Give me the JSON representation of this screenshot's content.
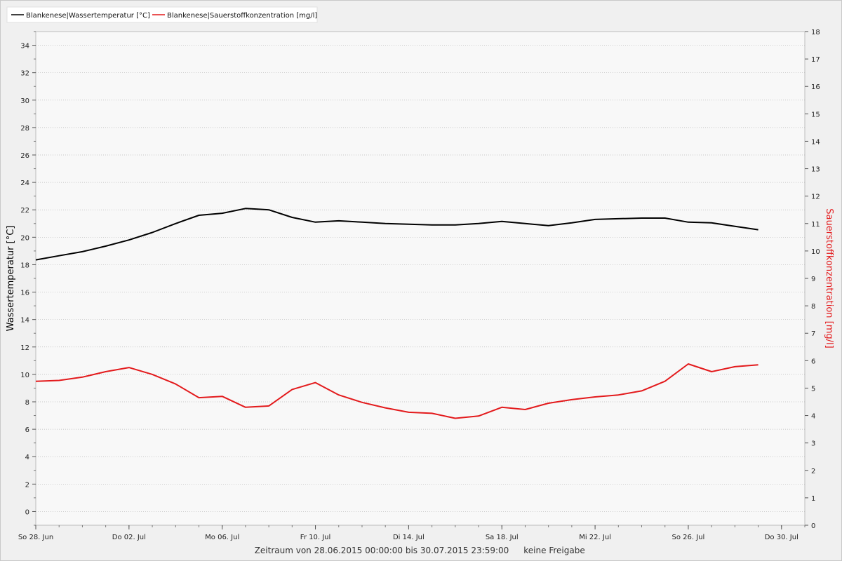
{
  "chart_data": {
    "type": "line",
    "title": "",
    "legend": {
      "placement": "top-left",
      "entries": [
        {
          "label": "Blankenese|Wassertemperatur [°C]",
          "color": "#000000"
        },
        {
          "label": "Blankenese|Sauerstoffkonzentration [mg/l]",
          "color": "#e31a1c"
        }
      ]
    },
    "x_axis": {
      "type": "date",
      "range": [
        "2015-06-28",
        "2015-07-31"
      ],
      "tick_labels": [
        {
          "date": "2015-06-28",
          "label": "So 28. Jun"
        },
        {
          "date": "2015-07-02",
          "label": "Do 02. Jul"
        },
        {
          "date": "2015-07-06",
          "label": "Mo 06. Jul"
        },
        {
          "date": "2015-07-10",
          "label": "Fr 10. Jul"
        },
        {
          "date": "2015-07-14",
          "label": "Di 14. Jul"
        },
        {
          "date": "2015-07-18",
          "label": "Sa 18. Jul"
        },
        {
          "date": "2015-07-22",
          "label": "Mi 22. Jul"
        },
        {
          "date": "2015-07-26",
          "label": "So 26. Jul"
        },
        {
          "date": "2015-07-30",
          "label": "Do 30. Jul"
        }
      ]
    },
    "y_axis_left": {
      "label": "Wassertemperatur [°C]",
      "range": [
        -1,
        35
      ],
      "ticks": [
        0,
        2,
        4,
        6,
        8,
        10,
        12,
        14,
        16,
        18,
        20,
        22,
        24,
        26,
        28,
        30,
        32,
        34
      ],
      "color": "#000000"
    },
    "y_axis_right": {
      "label": "Sauerstoffkonzentration [mg/l]",
      "range": [
        0,
        18
      ],
      "ticks": [
        0,
        1,
        2,
        3,
        4,
        5,
        6,
        7,
        8,
        9,
        10,
        11,
        12,
        13,
        14,
        15,
        16,
        17,
        18
      ],
      "color": "#e31a1c"
    },
    "grid": true,
    "series": [
      {
        "name": "Blankenese|Wassertemperatur [°C]",
        "axis": "left",
        "color": "#000000",
        "x": [
          "2015-06-28",
          "2015-06-29",
          "2015-06-30",
          "2015-07-01",
          "2015-07-02",
          "2015-07-03",
          "2015-07-04",
          "2015-07-05",
          "2015-07-06",
          "2015-07-07",
          "2015-07-08",
          "2015-07-09",
          "2015-07-10",
          "2015-07-11",
          "2015-07-12",
          "2015-07-13",
          "2015-07-14",
          "2015-07-15",
          "2015-07-16",
          "2015-07-17",
          "2015-07-18",
          "2015-07-19",
          "2015-07-20",
          "2015-07-21",
          "2015-07-22",
          "2015-07-23",
          "2015-07-24",
          "2015-07-25",
          "2015-07-26",
          "2015-07-27",
          "2015-07-28",
          "2015-07-29"
        ],
        "y": [
          18.35,
          18.65,
          18.95,
          19.35,
          19.8,
          20.35,
          21.0,
          21.6,
          21.75,
          22.1,
          22.0,
          21.45,
          21.1,
          21.2,
          21.1,
          21.0,
          20.95,
          20.9,
          20.9,
          21.0,
          21.15,
          21.0,
          20.85,
          21.05,
          21.3,
          21.35,
          21.4,
          21.4,
          21.1,
          21.05,
          20.8,
          20.55
        ]
      },
      {
        "name": "Blankenese|Sauerstoffkonzentration [mg/l]",
        "axis": "right",
        "color": "#e31a1c",
        "x": [
          "2015-06-28",
          "2015-06-29",
          "2015-06-30",
          "2015-07-01",
          "2015-07-02",
          "2015-07-03",
          "2015-07-04",
          "2015-07-05",
          "2015-07-06",
          "2015-07-07",
          "2015-07-08",
          "2015-07-09",
          "2015-07-10",
          "2015-07-11",
          "2015-07-12",
          "2015-07-13",
          "2015-07-14",
          "2015-07-15",
          "2015-07-16",
          "2015-07-17",
          "2015-07-18",
          "2015-07-19",
          "2015-07-20",
          "2015-07-21",
          "2015-07-22",
          "2015-07-23",
          "2015-07-24",
          "2015-07-25",
          "2015-07-26",
          "2015-07-27",
          "2015-07-28",
          "2015-07-29"
        ],
        "y": [
          5.25,
          5.28,
          5.4,
          5.6,
          5.75,
          5.5,
          5.15,
          4.65,
          4.7,
          4.3,
          4.35,
          4.95,
          5.2,
          4.75,
          4.48,
          4.28,
          4.12,
          4.08,
          3.9,
          3.98,
          4.3,
          4.22,
          4.45,
          4.58,
          4.68,
          4.75,
          4.9,
          5.25,
          5.88,
          5.6,
          5.78,
          5.85
        ]
      }
    ],
    "footer": {
      "zeitraum": "Zeitraum von 28.06.2015 00:00:00 bis 30.07.2015 23:59:00",
      "freigabe": "keine Freigabe"
    }
  }
}
